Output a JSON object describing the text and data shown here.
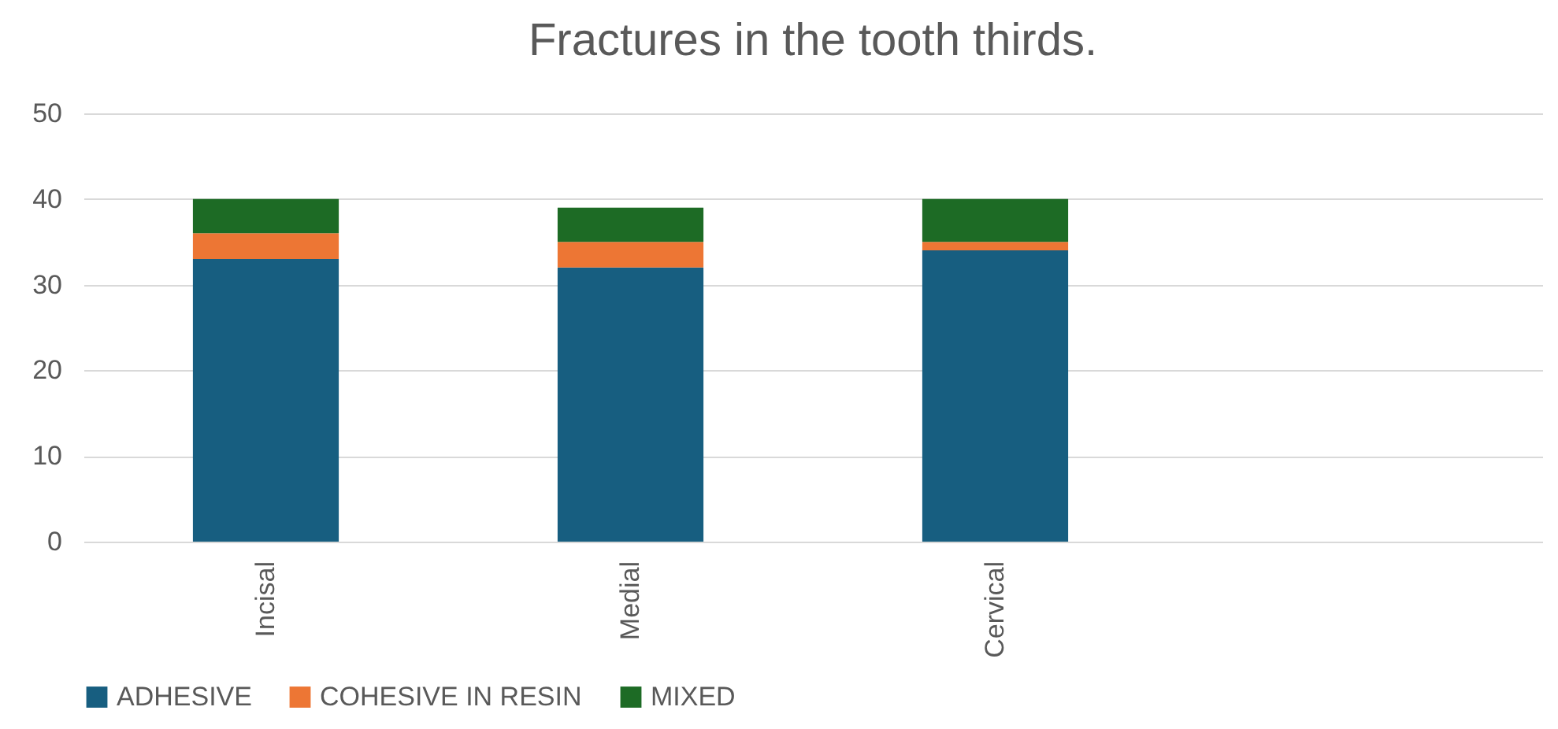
{
  "chart_data": {
    "type": "bar",
    "title": "Fractures in the tooth thirds.",
    "categories": [
      "Incisal",
      "Medial",
      "Cervical",
      null
    ],
    "stacked": true,
    "series": [
      {
        "name": "ADHESIVE",
        "color": "#175e80",
        "values": [
          33,
          32,
          34,
          null
        ]
      },
      {
        "name": "COHESIVE IN RESIN",
        "color": "#ed7634",
        "values": [
          3,
          3,
          1,
          null
        ]
      },
      {
        "name": "MIXED",
        "color": "#1d6b25",
        "values": [
          4,
          4,
          5,
          null
        ]
      }
    ],
    "ylim": [
      0,
      50
    ],
    "yticks": [
      0,
      10,
      20,
      30,
      40,
      50
    ],
    "grid": "y",
    "legend": "bottom"
  }
}
